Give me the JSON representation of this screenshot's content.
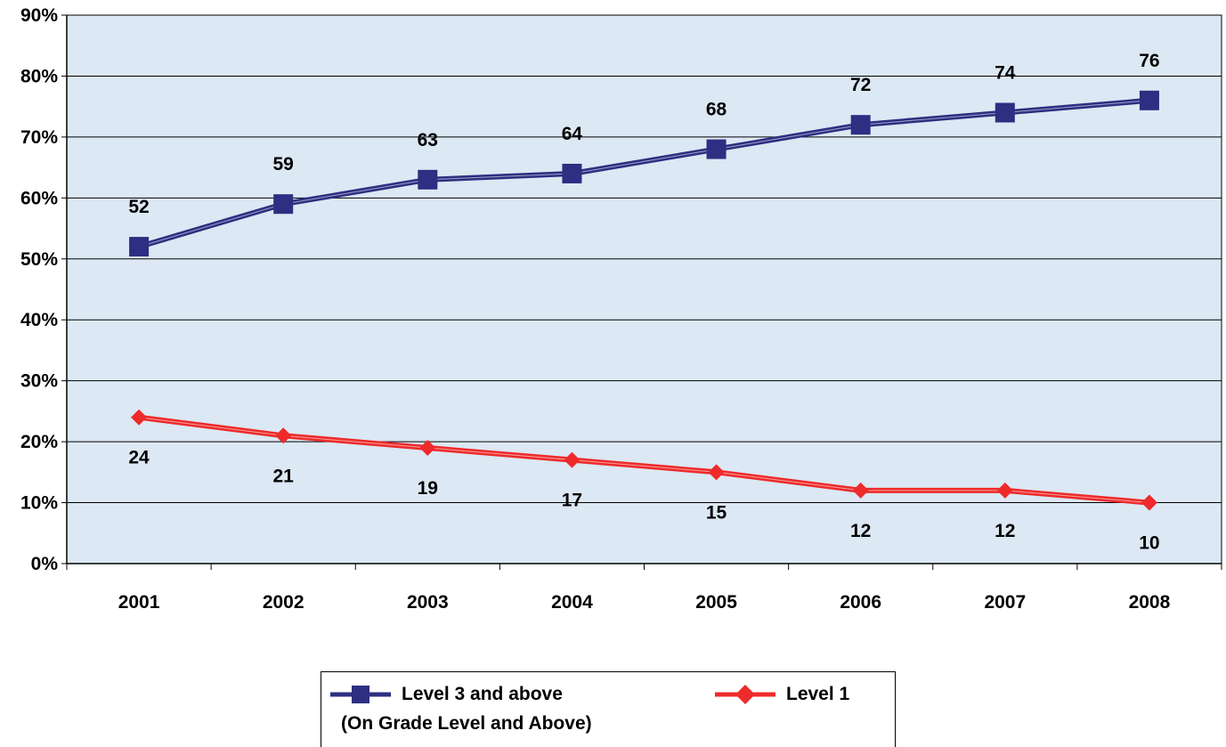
{
  "chart_data": {
    "type": "line",
    "categories": [
      "2001",
      "2002",
      "2003",
      "2004",
      "2005",
      "2006",
      "2007",
      "2008"
    ],
    "ylim": [
      0,
      90
    ],
    "yticks": [
      0,
      10,
      20,
      30,
      40,
      50,
      60,
      70,
      80,
      90
    ],
    "ytick_labels": [
      "0%",
      "10%",
      "20%",
      "30%",
      "40%",
      "50%",
      "60%",
      "70%",
      "80%",
      "90%"
    ],
    "grid": true,
    "plot_background": "#dce8f3",
    "legend_position": "bottom-center",
    "series": [
      {
        "name": "Level 3 and above",
        "legend_subtitle": "(On Grade Level and Above)",
        "values": [
          52,
          59,
          63,
          64,
          68,
          72,
          74,
          76
        ],
        "labels": [
          "52",
          "59",
          "63",
          "64",
          "68",
          "72",
          "74",
          "76"
        ],
        "label_position": "above",
        "marker": "square",
        "color": "#2e2e82"
      },
      {
        "name": "Level 1",
        "values": [
          24,
          21,
          19,
          17,
          15,
          12,
          12,
          10
        ],
        "labels": [
          "24",
          "21",
          "19",
          "17",
          "15",
          "12",
          "12",
          "10"
        ],
        "label_position": "below",
        "marker": "diamond",
        "color": "#ee2a2a"
      }
    ]
  }
}
